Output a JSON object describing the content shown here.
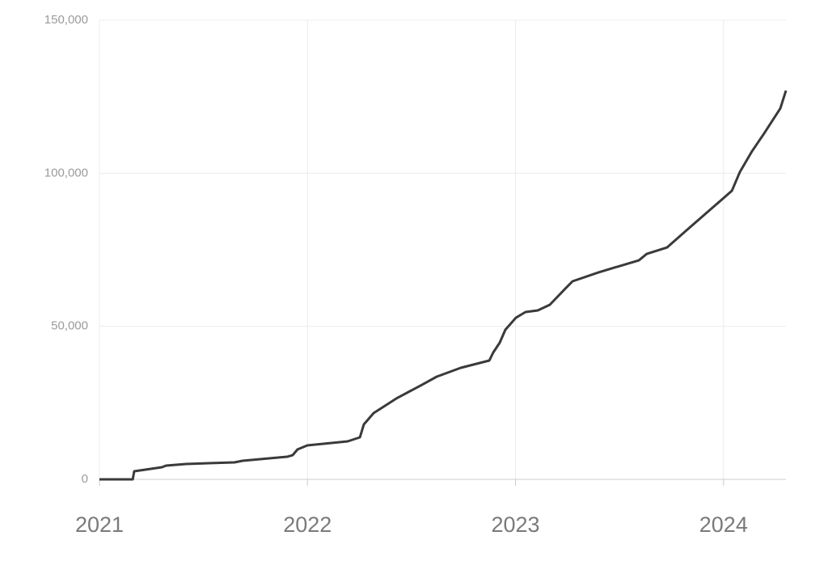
{
  "chart_data": {
    "type": "line",
    "x": [
      2021.0,
      2021.16,
      2021.167,
      2021.3,
      2021.32,
      2021.416,
      2021.649,
      2021.688,
      2021.902,
      2021.929,
      2021.952,
      2021.999,
      2022.193,
      2022.252,
      2022.271,
      2022.318,
      2022.427,
      2022.543,
      2022.621,
      2022.737,
      2022.874,
      2022.893,
      2022.924,
      2022.951,
      2023.002,
      2023.048,
      2023.107,
      2023.165,
      2023.243,
      2023.274,
      2023.398,
      2023.515,
      2023.593,
      2023.631,
      2023.729,
      2023.826,
      2023.942,
      2024.04,
      2024.078,
      2024.137,
      2024.195,
      2024.273,
      2024.3
    ],
    "series": [
      {
        "color": "#3a3a3a",
        "values": [
          0,
          0,
          2640,
          3960,
          4490,
          5020,
          5550,
          6070,
          7390,
          7920,
          9770,
          11090,
          12410,
          13730,
          17960,
          21650,
          26410,
          30630,
          33540,
          36440,
          38820,
          41460,
          44630,
          48850,
          52810,
          54660,
          55190,
          57040,
          62580,
          64700,
          67600,
          69980,
          71560,
          73670,
          75790,
          81600,
          88460,
          94270,
          100340,
          107210,
          113020,
          121200,
          127010
        ]
      }
    ],
    "xlim": [
      2021,
      2024.3
    ],
    "xticks": [
      2021,
      2022,
      2023,
      2024
    ],
    "ylim": [
      0,
      150000
    ],
    "yticks": [
      0,
      {
        "value": 50000,
        "label": "50,000"
      },
      {
        "value": 100000,
        "label": "100,000"
      },
      {
        "value": 150000,
        "label": "150,000"
      }
    ],
    "grid": true
  }
}
